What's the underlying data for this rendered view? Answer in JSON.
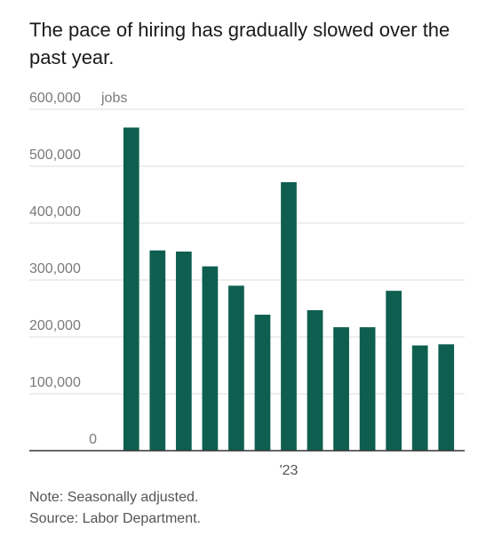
{
  "title": "The pace of hiring has gradually slowed over the past year.",
  "note": "Note: Seasonally adjusted.",
  "source": "Source: Labor Department.",
  "colors": {
    "bar": "#0f5f50",
    "grid": "#dddddd",
    "axis": "#333333"
  },
  "chart_data": {
    "type": "bar",
    "title": "The pace of hiring has gradually slowed over the past year.",
    "ylabel": "jobs",
    "ylim": [
      0,
      600000
    ],
    "yticks": [
      0,
      100000,
      200000,
      300000,
      400000,
      500000,
      600000
    ],
    "ytick_labels": [
      "0",
      "100,000",
      "200,000",
      "300,000",
      "400,000",
      "500,000",
      "600,000"
    ],
    "ytick_unit_suffix": "jobs",
    "categories": [
      "",
      "",
      "",
      "",
      "",
      "",
      "'23",
      "",
      "",
      "",
      "",
      "",
      ""
    ],
    "xtick_labels": [
      {
        "index": 6,
        "label": "'23"
      }
    ],
    "values": [
      568000,
      352000,
      350000,
      324000,
      290000,
      239000,
      472000,
      247000,
      217000,
      217000,
      281000,
      185000,
      187000
    ],
    "grid": true,
    "legend": "none"
  }
}
